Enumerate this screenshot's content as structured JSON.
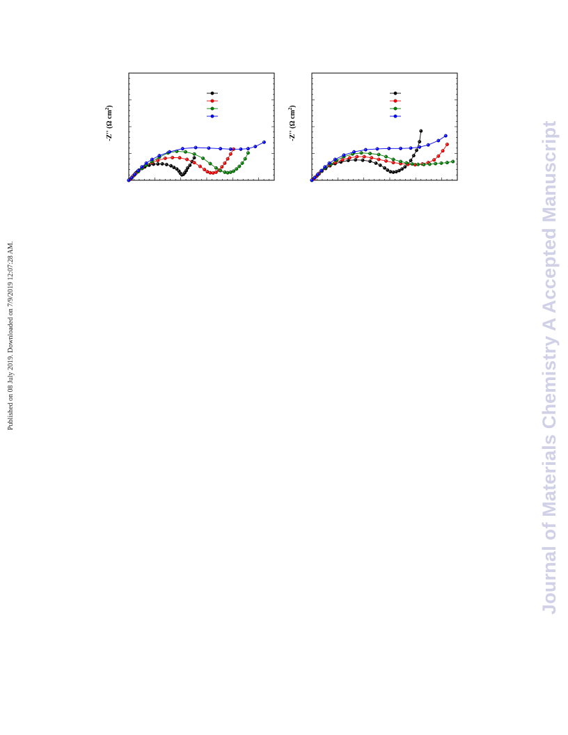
{
  "sidebar_note": "Published on 08 July 2019. Downloaded on 7/9/2019 12:07:28 AM.",
  "watermark": "Journal of Materials Chemistry A Accepted Manuscript",
  "series_colors": [
    "#000000",
    "#ff0000",
    "#008000",
    "#0000ff"
  ],
  "chart_data": [
    {
      "type": "scatter",
      "ylabel_main": "-Z'' (",
      "ylabel_unit": "Ω",
      "ylabel_tail": " cm",
      "ylabel_sup": "2",
      "ylabel_close": ")",
      "xlim": [
        0,
        100
      ],
      "ylim": [
        0,
        100
      ],
      "grid": false,
      "legend_position": "top-right",
      "series": [
        {
          "color": "#000000",
          "points": [
            [
              0,
              0
            ],
            [
              1,
              1
            ],
            [
              2,
              2.5
            ],
            [
              3,
              4
            ],
            [
              4,
              5.5
            ],
            [
              5,
              7
            ],
            [
              6,
              8.2
            ],
            [
              7,
              9.5
            ],
            [
              9,
              11
            ],
            [
              11,
              12.5
            ],
            [
              14,
              14
            ],
            [
              17,
              15
            ],
            [
              20,
              15.2
            ],
            [
              23,
              15.3
            ],
            [
              26,
              14.7
            ],
            [
              29,
              13.5
            ],
            [
              31,
              12
            ],
            [
              33,
              10.5
            ],
            [
              34.5,
              8.5
            ],
            [
              35.5,
              6.5
            ],
            [
              36.5,
              5
            ],
            [
              37.5,
              5.5
            ],
            [
              38.5,
              7
            ],
            [
              39.5,
              9
            ],
            [
              40.5,
              11.5
            ],
            [
              42,
              14
            ],
            [
              43.5,
              17.5
            ],
            [
              45,
              21
            ]
          ]
        },
        {
          "color": "#ff0000",
          "points": [
            [
              0,
              0
            ],
            [
              1.5,
              1.5
            ],
            [
              3,
              3.8
            ],
            [
              5,
              6.5
            ],
            [
              7,
              9
            ],
            [
              9.5,
              11.5
            ],
            [
              12,
              14
            ],
            [
              16,
              16.5
            ],
            [
              20,
              18.5
            ],
            [
              25,
              20.5
            ],
            [
              30,
              21.2
            ],
            [
              35,
              21
            ],
            [
              40,
              19.5
            ],
            [
              45,
              16.5
            ],
            [
              49,
              13
            ],
            [
              52,
              10
            ],
            [
              54,
              8
            ],
            [
              56,
              7
            ],
            [
              58,
              6.8
            ],
            [
              60,
              7.5
            ],
            [
              62,
              9.5
            ],
            [
              64,
              12.5
            ],
            [
              66,
              16
            ],
            [
              68,
              20
            ],
            [
              70,
              24.5
            ],
            [
              72,
              29
            ]
          ]
        },
        {
          "color": "#008000",
          "points": [
            [
              0,
              0
            ],
            [
              2,
              2.2
            ],
            [
              4,
              5
            ],
            [
              6.5,
              8
            ],
            [
              9,
              11
            ],
            [
              12,
              14
            ],
            [
              16,
              17.5
            ],
            [
              21,
              21.5
            ],
            [
              27,
              25.5
            ],
            [
              33,
              27
            ],
            [
              39,
              26.5
            ],
            [
              45,
              24.5
            ],
            [
              51,
              20.5
            ],
            [
              56,
              15.5
            ],
            [
              60,
              11.5
            ],
            [
              63,
              9
            ],
            [
              66,
              7.5
            ],
            [
              68,
              7
            ],
            [
              70,
              7.5
            ],
            [
              72,
              8.5
            ],
            [
              74,
              10.5
            ],
            [
              76,
              13
            ],
            [
              78,
              16
            ],
            [
              80,
              20
            ],
            [
              82,
              25.5
            ]
          ]
        },
        {
          "color": "#0000ff",
          "points": [
            [
              0,
              0
            ],
            [
              2,
              2.5
            ],
            [
              4,
              5.5
            ],
            [
              6.5,
              9
            ],
            [
              9,
              12.5
            ],
            [
              12,
              16
            ],
            [
              16,
              19.5
            ],
            [
              21,
              23
            ],
            [
              28,
              26.5
            ],
            [
              37,
              29.5
            ],
            [
              46,
              30.5
            ],
            [
              55,
              30
            ],
            [
              63,
              29.5
            ],
            [
              70,
              29
            ],
            [
              77,
              29
            ],
            [
              82,
              29.5
            ],
            [
              87,
              31.5
            ],
            [
              93,
              35.5
            ]
          ]
        }
      ]
    },
    {
      "type": "scatter",
      "ylabel_main": "-Z'' (",
      "ylabel_unit": "Ω",
      "ylabel_tail": " cm",
      "ylabel_sup": "2",
      "ylabel_close": ")",
      "xlim": [
        0,
        100
      ],
      "ylim": [
        0,
        100
      ],
      "grid": false,
      "legend_position": "top-right",
      "series": [
        {
          "color": "#000000",
          "points": [
            [
              0,
              0
            ],
            [
              1,
              1.2
            ],
            [
              2,
              2.5
            ],
            [
              3.5,
              4
            ],
            [
              5,
              6
            ],
            [
              7,
              8.5
            ],
            [
              9.5,
              11
            ],
            [
              12.5,
              13.5
            ],
            [
              16,
              15.5
            ],
            [
              20,
              17
            ],
            [
              25,
              18.5
            ],
            [
              30,
              19
            ],
            [
              35,
              18.7
            ],
            [
              40,
              17.7
            ],
            [
              44,
              16
            ],
            [
              47,
              14
            ],
            [
              50,
              11.5
            ],
            [
              52,
              9.5
            ],
            [
              54,
              8
            ],
            [
              56,
              7.5
            ],
            [
              58,
              8
            ],
            [
              60,
              9
            ],
            [
              62,
              10.5
            ],
            [
              64,
              12.5
            ],
            [
              66,
              15
            ],
            [
              68,
              18.5
            ],
            [
              70,
              23
            ],
            [
              72,
              28
            ],
            [
              74,
              36
            ],
            [
              75,
              46
            ]
          ]
        },
        {
          "color": "#ff0000",
          "points": [
            [
              0,
              0
            ],
            [
              1.5,
              1.5
            ],
            [
              3,
              3.5
            ],
            [
              5,
              6.5
            ],
            [
              7,
              9
            ],
            [
              9,
              11.5
            ],
            [
              12,
              14
            ],
            [
              16,
              16.5
            ],
            [
              21,
              19
            ],
            [
              26,
              21
            ],
            [
              31,
              22
            ],
            [
              36,
              22
            ],
            [
              41,
              21
            ],
            [
              46,
              19.5
            ],
            [
              51,
              18
            ],
            [
              56,
              16.5
            ],
            [
              61,
              15.5
            ],
            [
              66,
              14.8
            ],
            [
              71,
              14.5
            ],
            [
              76,
              15.2
            ],
            [
              80,
              16.5
            ],
            [
              84,
              19
            ],
            [
              87,
              22.5
            ],
            [
              90,
              27.5
            ],
            [
              93,
              33.5
            ]
          ]
        },
        {
          "color": "#008000",
          "points": [
            [
              0,
              0
            ],
            [
              2,
              2.5
            ],
            [
              4,
              5
            ],
            [
              6.5,
              8.5
            ],
            [
              9,
              11.5
            ],
            [
              13,
              15
            ],
            [
              17,
              18.5
            ],
            [
              22,
              22
            ],
            [
              28,
              24.5
            ],
            [
              34,
              25.5
            ],
            [
              40,
              25
            ],
            [
              46,
              24
            ],
            [
              51,
              22
            ],
            [
              56,
              19.5
            ],
            [
              61,
              17.5
            ],
            [
              65,
              16.2
            ],
            [
              69,
              15.2
            ],
            [
              73,
              14.8
            ],
            [
              77,
              14.7
            ],
            [
              81,
              15
            ],
            [
              85,
              15.5
            ],
            [
              89,
              16
            ],
            [
              93,
              16.5
            ],
            [
              97,
              17.5
            ]
          ]
        },
        {
          "color": "#0000ff",
          "points": [
            [
              0,
              0
            ],
            [
              2,
              2.5
            ],
            [
              4,
              5.5
            ],
            [
              6.5,
              9
            ],
            [
              9,
              12.5
            ],
            [
              12,
              16
            ],
            [
              16,
              19.5
            ],
            [
              22,
              23.5
            ],
            [
              29,
              26.5
            ],
            [
              37,
              28.5
            ],
            [
              45,
              29.3
            ],
            [
              53,
              29.7
            ],
            [
              61,
              29.7
            ],
            [
              68,
              30
            ],
            [
              74,
              31
            ],
            [
              80,
              33
            ],
            [
              87,
              37
            ],
            [
              92,
              41.5
            ]
          ]
        }
      ]
    }
  ]
}
